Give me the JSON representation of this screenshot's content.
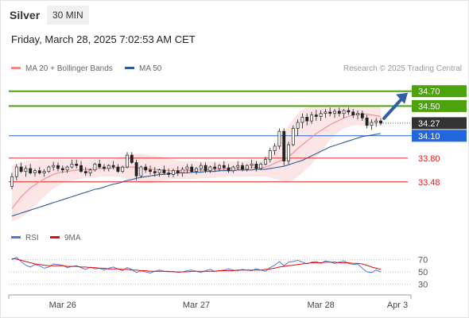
{
  "header": {
    "instrument": "Silver",
    "timeframe": "30 MIN",
    "datetime": "Friday, March 28, 2025 7:02:53 AM CET"
  },
  "legend": {
    "ma20": {
      "label": "MA 20 + Bollinger Bands",
      "color": "#f08a8a"
    },
    "ma50": {
      "label": "MA 50",
      "color": "#2b5c9e"
    },
    "rsi": {
      "label": "RSI",
      "color": "#5577d6"
    },
    "rsi_ma": {
      "label": "9MA",
      "color": "#e01010"
    }
  },
  "credit": "Research © 2025 Trading Central",
  "chart_data": [
    {
      "type": "candlestick",
      "title": "",
      "x_ticks": [
        "Mar 26",
        "Mar 27",
        "Mar 28",
        "Apr 3"
      ],
      "levels": [
        {
          "value": 34.7,
          "label": "34.70",
          "color": "#4ca30d",
          "kind": "target"
        },
        {
          "value": 34.5,
          "label": "34.50",
          "color": "#4ca30d",
          "kind": "target"
        },
        {
          "value": 34.27,
          "label": "34.27",
          "color": "#333333",
          "kind": "last"
        },
        {
          "value": 34.1,
          "label": "34.10",
          "color": "#2266dd",
          "kind": "pivot"
        },
        {
          "value": 33.8,
          "label": "33.80",
          "color": "#e02020",
          "kind": "support"
        },
        {
          "value": 33.48,
          "label": "33.48",
          "color": "#e02020",
          "kind": "support"
        }
      ],
      "ylim": [
        32.9,
        34.9
      ],
      "candles": [
        [
          33.42,
          33.6,
          33.38,
          33.55
        ],
        [
          33.55,
          33.72,
          33.5,
          33.68
        ],
        [
          33.68,
          33.74,
          33.6,
          33.62
        ],
        [
          33.62,
          33.7,
          33.55,
          33.66
        ],
        [
          33.66,
          33.72,
          33.58,
          33.6
        ],
        [
          33.6,
          33.66,
          33.55,
          33.63
        ],
        [
          33.63,
          33.68,
          33.58,
          33.6
        ],
        [
          33.6,
          33.65,
          33.55,
          33.62
        ],
        [
          33.62,
          33.7,
          33.6,
          33.68
        ],
        [
          33.68,
          33.75,
          33.63,
          33.7
        ],
        [
          33.7,
          33.74,
          33.62,
          33.66
        ],
        [
          33.66,
          33.7,
          33.6,
          33.64
        ],
        [
          33.64,
          33.7,
          33.6,
          33.68
        ],
        [
          33.68,
          33.78,
          33.66,
          33.72
        ],
        [
          33.72,
          33.78,
          33.66,
          33.7
        ],
        [
          33.7,
          33.76,
          33.6,
          33.62
        ],
        [
          33.62,
          33.68,
          33.56,
          33.6
        ],
        [
          33.6,
          33.66,
          33.56,
          33.64
        ],
        [
          33.64,
          33.74,
          33.62,
          33.72
        ],
        [
          33.72,
          33.78,
          33.66,
          33.68
        ],
        [
          33.68,
          33.72,
          33.62,
          33.66
        ],
        [
          33.66,
          33.72,
          33.62,
          33.7
        ],
        [
          33.7,
          33.76,
          33.65,
          33.68
        ],
        [
          33.68,
          33.72,
          33.6,
          33.62
        ],
        [
          33.62,
          33.7,
          33.6,
          33.68
        ],
        [
          33.68,
          33.88,
          33.66,
          33.84
        ],
        [
          33.84,
          33.88,
          33.72,
          33.74
        ],
        [
          33.74,
          33.78,
          33.5,
          33.56
        ],
        [
          33.56,
          33.7,
          33.54,
          33.68
        ],
        [
          33.68,
          33.72,
          33.6,
          33.64
        ],
        [
          33.64,
          33.7,
          33.58,
          33.62
        ],
        [
          33.62,
          33.68,
          33.55,
          33.6
        ],
        [
          33.6,
          33.66,
          33.55,
          33.64
        ],
        [
          33.64,
          33.7,
          33.58,
          33.6
        ],
        [
          33.6,
          33.66,
          33.54,
          33.58
        ],
        [
          33.58,
          33.66,
          33.54,
          33.63
        ],
        [
          33.63,
          33.69,
          33.56,
          33.6
        ],
        [
          33.6,
          33.68,
          33.55,
          33.65
        ],
        [
          33.65,
          33.72,
          33.6,
          33.68
        ],
        [
          33.68,
          33.72,
          33.6,
          33.62
        ],
        [
          33.62,
          33.68,
          33.58,
          33.66
        ],
        [
          33.66,
          33.74,
          33.62,
          33.7
        ],
        [
          33.7,
          33.74,
          33.6,
          33.63
        ],
        [
          33.63,
          33.7,
          33.6,
          33.68
        ],
        [
          33.68,
          33.74,
          33.62,
          33.66
        ],
        [
          33.66,
          33.72,
          33.62,
          33.7
        ],
        [
          33.7,
          33.76,
          33.64,
          33.67
        ],
        [
          33.67,
          33.72,
          33.6,
          33.63
        ],
        [
          33.63,
          33.7,
          33.6,
          33.68
        ],
        [
          33.68,
          33.76,
          33.64,
          33.7
        ],
        [
          33.7,
          33.74,
          33.62,
          33.65
        ],
        [
          33.65,
          33.72,
          33.62,
          33.7
        ],
        [
          33.7,
          33.78,
          33.66,
          33.72
        ],
        [
          33.72,
          33.76,
          33.62,
          33.66
        ],
        [
          33.66,
          33.74,
          33.64,
          33.72
        ],
        [
          33.72,
          33.82,
          33.7,
          33.78
        ],
        [
          33.78,
          33.94,
          33.74,
          33.9
        ],
        [
          33.9,
          34.0,
          33.84,
          33.96
        ],
        [
          33.96,
          34.2,
          33.92,
          34.16
        ],
        [
          34.16,
          34.2,
          33.7,
          33.76
        ],
        [
          33.76,
          34.02,
          33.72,
          33.98
        ],
        [
          33.98,
          34.24,
          33.96,
          34.2
        ],
        [
          34.2,
          34.32,
          34.1,
          34.28
        ],
        [
          34.28,
          34.4,
          34.2,
          34.35
        ],
        [
          34.35,
          34.4,
          34.24,
          34.3
        ],
        [
          34.3,
          34.42,
          34.26,
          34.38
        ],
        [
          34.38,
          34.45,
          34.3,
          34.36
        ],
        [
          34.36,
          34.44,
          34.3,
          34.4
        ],
        [
          34.4,
          34.46,
          34.34,
          34.42
        ],
        [
          34.42,
          34.48,
          34.36,
          34.4
        ],
        [
          34.4,
          34.46,
          34.34,
          34.43
        ],
        [
          34.43,
          34.48,
          34.36,
          34.4
        ],
        [
          34.4,
          34.46,
          34.34,
          34.44
        ],
        [
          34.44,
          34.48,
          34.38,
          34.42
        ],
        [
          34.42,
          34.46,
          34.34,
          34.38
        ],
        [
          34.38,
          34.44,
          34.32,
          34.4
        ],
        [
          34.4,
          34.44,
          34.3,
          34.34
        ],
        [
          34.34,
          34.38,
          34.2,
          34.24
        ],
        [
          34.24,
          34.32,
          34.18,
          34.28
        ],
        [
          34.28,
          34.34,
          34.22,
          34.3
        ],
        [
          34.3,
          34.34,
          34.24,
          34.27
        ]
      ],
      "ma20": [
        33.12,
        33.2,
        33.28,
        33.34,
        33.4,
        33.44,
        33.48,
        33.52,
        33.55,
        33.58,
        33.6,
        33.61,
        33.62,
        33.63,
        33.64,
        33.64,
        33.65,
        33.65,
        33.65,
        33.66,
        33.66,
        33.66,
        33.67,
        33.67,
        33.67,
        33.68,
        33.68,
        33.67,
        33.66,
        33.66,
        33.65,
        33.65,
        33.64,
        33.64,
        33.63,
        33.63,
        33.63,
        33.63,
        33.63,
        33.64,
        33.64,
        33.64,
        33.64,
        33.65,
        33.65,
        33.65,
        33.65,
        33.66,
        33.66,
        33.66,
        33.66,
        33.67,
        33.67,
        33.67,
        33.67,
        33.68,
        33.7,
        33.73,
        33.76,
        33.78,
        33.82,
        33.87,
        33.93,
        33.98,
        34.03,
        34.08,
        34.13,
        34.17,
        34.21,
        34.25,
        34.28,
        34.31,
        34.34,
        34.36,
        34.38,
        34.39,
        34.39,
        34.39,
        34.38,
        34.37,
        34.36
      ],
      "bb_upper": [
        33.7,
        33.72,
        33.74,
        33.76,
        33.77,
        33.77,
        33.78,
        33.78,
        33.78,
        33.78,
        33.78,
        33.78,
        33.78,
        33.78,
        33.78,
        33.78,
        33.78,
        33.78,
        33.78,
        33.78,
        33.78,
        33.78,
        33.78,
        33.79,
        33.8,
        33.83,
        33.85,
        33.86,
        33.86,
        33.85,
        33.84,
        33.83,
        33.82,
        33.8,
        33.79,
        33.78,
        33.77,
        33.76,
        33.76,
        33.76,
        33.76,
        33.76,
        33.76,
        33.76,
        33.76,
        33.76,
        33.76,
        33.76,
        33.76,
        33.76,
        33.76,
        33.77,
        33.77,
        33.77,
        33.77,
        33.79,
        33.86,
        33.95,
        34.06,
        34.15,
        34.24,
        34.32,
        34.4,
        34.45,
        34.48,
        34.5,
        34.5,
        34.5,
        34.5,
        34.5,
        34.5,
        34.5,
        34.5,
        34.5,
        34.5,
        34.5,
        34.5,
        34.5,
        34.5,
        34.5,
        34.48
      ],
      "bb_lower": [
        32.95,
        32.97,
        33.0,
        33.04,
        33.1,
        33.16,
        33.22,
        33.28,
        33.34,
        33.39,
        33.43,
        33.46,
        33.48,
        33.5,
        33.51,
        33.52,
        33.53,
        33.54,
        33.54,
        33.55,
        33.55,
        33.55,
        33.55,
        33.55,
        33.54,
        33.52,
        33.5,
        33.48,
        33.46,
        33.46,
        33.46,
        33.47,
        33.48,
        33.5,
        33.51,
        33.52,
        33.52,
        33.52,
        33.52,
        33.52,
        33.52,
        33.53,
        33.53,
        33.53,
        33.54,
        33.54,
        33.54,
        33.55,
        33.55,
        33.55,
        33.55,
        33.55,
        33.55,
        33.55,
        33.55,
        33.55,
        33.54,
        33.52,
        33.5,
        33.48,
        33.48,
        33.5,
        33.55,
        33.6,
        33.66,
        33.72,
        33.8,
        33.88,
        33.96,
        34.04,
        34.1,
        34.16,
        34.2,
        34.22,
        34.24,
        34.24,
        34.24,
        34.24,
        34.24,
        34.24,
        34.24
      ],
      "ma50": [
        33.02,
        33.04,
        33.06,
        33.08,
        33.1,
        33.12,
        33.14,
        33.16,
        33.18,
        33.2,
        33.22,
        33.24,
        33.26,
        33.28,
        33.3,
        33.32,
        33.34,
        33.36,
        33.38,
        33.39,
        33.41,
        33.43,
        33.45,
        33.46,
        33.48,
        33.5,
        33.51,
        33.53,
        33.54,
        33.55,
        33.56,
        33.57,
        33.58,
        33.58,
        33.59,
        33.59,
        33.6,
        33.6,
        33.6,
        33.61,
        33.61,
        33.61,
        33.62,
        33.62,
        33.62,
        33.63,
        33.63,
        33.63,
        33.63,
        33.64,
        33.64,
        33.64,
        33.64,
        33.65,
        33.65,
        33.65,
        33.66,
        33.67,
        33.68,
        33.69,
        33.71,
        33.73,
        33.75,
        33.77,
        33.8,
        33.83,
        33.86,
        33.89,
        33.92,
        33.95,
        33.97,
        33.99,
        34.01,
        34.03,
        34.05,
        34.07,
        34.09,
        34.1,
        34.11,
        34.12,
        34.13
      ]
    },
    {
      "type": "line",
      "title": "",
      "y_ticks": [
        70,
        50,
        30
      ],
      "ylim": [
        20,
        80
      ],
      "series": [
        {
          "name": "RSI",
          "values": [
            70,
            74,
            67,
            61,
            58,
            62,
            60,
            56,
            58,
            63,
            62,
            61,
            57,
            59,
            60,
            57,
            54,
            58,
            55,
            56,
            53,
            56,
            58,
            55,
            52,
            57,
            54,
            49,
            52,
            50,
            48,
            51,
            53,
            51,
            50,
            51,
            49,
            50,
            52,
            53,
            51,
            49,
            52,
            54,
            51,
            52,
            53,
            55,
            53,
            52,
            54,
            53,
            52,
            55,
            53,
            51,
            57,
            61,
            67,
            60,
            66,
            67,
            69,
            66,
            63,
            66,
            67,
            64,
            68,
            66,
            64,
            66,
            68,
            64,
            62,
            63,
            56,
            50,
            49,
            53,
            50
          ]
        },
        {
          "name": "9MA",
          "values": [
            72,
            71,
            69,
            67,
            65,
            63,
            62,
            61,
            60,
            60,
            60,
            60,
            59,
            59,
            59,
            58,
            58,
            57,
            57,
            56,
            56,
            55,
            55,
            55,
            54,
            54,
            53,
            53,
            52,
            52,
            51,
            51,
            51,
            51,
            51,
            50,
            50,
            50,
            50,
            51,
            51,
            51,
            51,
            51,
            51,
            52,
            52,
            52,
            52,
            53,
            53,
            53,
            53,
            53,
            53,
            54,
            55,
            56,
            58,
            59,
            60,
            61,
            62,
            63,
            64,
            65,
            65,
            65,
            66,
            66,
            66,
            65,
            65,
            65,
            64,
            64,
            63,
            61,
            58,
            56,
            54
          ]
        }
      ]
    }
  ]
}
